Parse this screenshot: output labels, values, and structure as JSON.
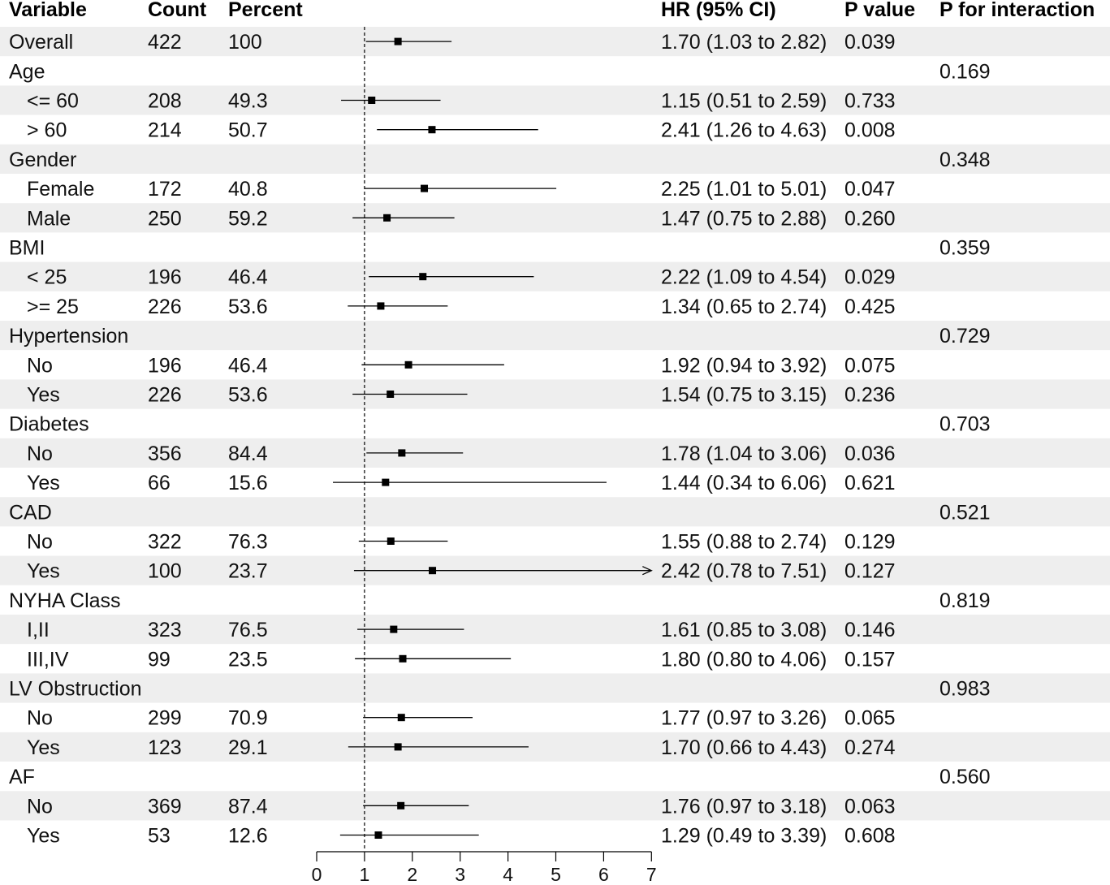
{
  "chart_data": {
    "type": "forest",
    "headers": {
      "variable": "Variable",
      "count": "Count",
      "percent": "Percent",
      "hr": "HR (95% CI)",
      "p": "P value",
      "p_interaction": "P for interaction"
    },
    "reference_line": 1,
    "xlim": [
      0,
      7
    ],
    "xticks": [
      "0",
      "1",
      "2",
      "3",
      "4",
      "5",
      "6",
      "7"
    ],
    "rows": [
      {
        "label": "Overall",
        "indent": false,
        "count": "422",
        "percent": "100",
        "hr": 1.7,
        "lo": 1.03,
        "hi": 2.82,
        "hr_text": "1.70 (1.03 to 2.82)",
        "p": "0.039",
        "p_int": ""
      },
      {
        "label": "Age",
        "indent": false,
        "count": "",
        "percent": "",
        "hr": null,
        "lo": null,
        "hi": null,
        "hr_text": "",
        "p": "",
        "p_int": "0.169"
      },
      {
        "label": "<= 60",
        "indent": true,
        "count": "208",
        "percent": "49.3",
        "hr": 1.15,
        "lo": 0.51,
        "hi": 2.59,
        "hr_text": "1.15 (0.51 to 2.59)",
        "p": "0.733",
        "p_int": ""
      },
      {
        "label": "> 60",
        "indent": true,
        "count": "214",
        "percent": "50.7",
        "hr": 2.41,
        "lo": 1.26,
        "hi": 4.63,
        "hr_text": "2.41 (1.26 to 4.63)",
        "p": "0.008",
        "p_int": ""
      },
      {
        "label": "Gender",
        "indent": false,
        "count": "",
        "percent": "",
        "hr": null,
        "lo": null,
        "hi": null,
        "hr_text": "",
        "p": "",
        "p_int": "0.348"
      },
      {
        "label": "Female",
        "indent": true,
        "count": "172",
        "percent": "40.8",
        "hr": 2.25,
        "lo": 1.01,
        "hi": 5.01,
        "hr_text": "2.25 (1.01 to 5.01)",
        "p": "0.047",
        "p_int": ""
      },
      {
        "label": "Male",
        "indent": true,
        "count": "250",
        "percent": "59.2",
        "hr": 1.47,
        "lo": 0.75,
        "hi": 2.88,
        "hr_text": "1.47 (0.75 to 2.88)",
        "p": "0.260",
        "p_int": ""
      },
      {
        "label": "BMI",
        "indent": false,
        "count": "",
        "percent": "",
        "hr": null,
        "lo": null,
        "hi": null,
        "hr_text": "",
        "p": "",
        "p_int": "0.359"
      },
      {
        "label": "< 25",
        "indent": true,
        "count": "196",
        "percent": "46.4",
        "hr": 2.22,
        "lo": 1.09,
        "hi": 4.54,
        "hr_text": "2.22 (1.09 to 4.54)",
        "p": "0.029",
        "p_int": ""
      },
      {
        "label": ">= 25",
        "indent": true,
        "count": "226",
        "percent": "53.6",
        "hr": 1.34,
        "lo": 0.65,
        "hi": 2.74,
        "hr_text": "1.34 (0.65 to 2.74)",
        "p": "0.425",
        "p_int": ""
      },
      {
        "label": "Hypertension",
        "indent": false,
        "count": "",
        "percent": "",
        "hr": null,
        "lo": null,
        "hi": null,
        "hr_text": "",
        "p": "",
        "p_int": "0.729"
      },
      {
        "label": "No",
        "indent": true,
        "count": "196",
        "percent": "46.4",
        "hr": 1.92,
        "lo": 0.94,
        "hi": 3.92,
        "hr_text": "1.92 (0.94 to 3.92)",
        "p": "0.075",
        "p_int": ""
      },
      {
        "label": "Yes",
        "indent": true,
        "count": "226",
        "percent": "53.6",
        "hr": 1.54,
        "lo": 0.75,
        "hi": 3.15,
        "hr_text": "1.54 (0.75 to 3.15)",
        "p": "0.236",
        "p_int": ""
      },
      {
        "label": "Diabetes",
        "indent": false,
        "count": "",
        "percent": "",
        "hr": null,
        "lo": null,
        "hi": null,
        "hr_text": "",
        "p": "",
        "p_int": "0.703"
      },
      {
        "label": "No",
        "indent": true,
        "count": "356",
        "percent": "84.4",
        "hr": 1.78,
        "lo": 1.04,
        "hi": 3.06,
        "hr_text": "1.78 (1.04 to 3.06)",
        "p": "0.036",
        "p_int": ""
      },
      {
        "label": "Yes",
        "indent": true,
        "count": "66",
        "percent": "15.6",
        "hr": 1.44,
        "lo": 0.34,
        "hi": 6.06,
        "hr_text": "1.44 (0.34 to 6.06)",
        "p": "0.621",
        "p_int": ""
      },
      {
        "label": "CAD",
        "indent": false,
        "count": "",
        "percent": "",
        "hr": null,
        "lo": null,
        "hi": null,
        "hr_text": "",
        "p": "",
        "p_int": "0.521"
      },
      {
        "label": "No",
        "indent": true,
        "count": "322",
        "percent": "76.3",
        "hr": 1.55,
        "lo": 0.88,
        "hi": 2.74,
        "hr_text": "1.55 (0.88 to 2.74)",
        "p": "0.129",
        "p_int": ""
      },
      {
        "label": "Yes",
        "indent": true,
        "count": "100",
        "percent": "23.7",
        "hr": 2.42,
        "lo": 0.78,
        "hi": 7.51,
        "hr_text": "2.42 (0.78 to 7.51)",
        "p": "0.127",
        "p_int": ""
      },
      {
        "label": "NYHA Class",
        "indent": false,
        "count": "",
        "percent": "",
        "hr": null,
        "lo": null,
        "hi": null,
        "hr_text": "",
        "p": "",
        "p_int": "0.819"
      },
      {
        "label": "I,II",
        "indent": true,
        "count": "323",
        "percent": "76.5",
        "hr": 1.61,
        "lo": 0.85,
        "hi": 3.08,
        "hr_text": "1.61 (0.85 to 3.08)",
        "p": "0.146",
        "p_int": ""
      },
      {
        "label": "III,IV",
        "indent": true,
        "count": "99",
        "percent": "23.5",
        "hr": 1.8,
        "lo": 0.8,
        "hi": 4.06,
        "hr_text": "1.80 (0.80 to 4.06)",
        "p": "0.157",
        "p_int": ""
      },
      {
        "label": "LV Obstruction",
        "indent": false,
        "count": "",
        "percent": "",
        "hr": null,
        "lo": null,
        "hi": null,
        "hr_text": "",
        "p": "",
        "p_int": "0.983"
      },
      {
        "label": "No",
        "indent": true,
        "count": "299",
        "percent": "70.9",
        "hr": 1.77,
        "lo": 0.97,
        "hi": 3.26,
        "hr_text": "1.77 (0.97 to 3.26)",
        "p": "0.065",
        "p_int": ""
      },
      {
        "label": "Yes",
        "indent": true,
        "count": "123",
        "percent": "29.1",
        "hr": 1.7,
        "lo": 0.66,
        "hi": 4.43,
        "hr_text": "1.70 (0.66 to 4.43)",
        "p": "0.274",
        "p_int": ""
      },
      {
        "label": "AF",
        "indent": false,
        "count": "",
        "percent": "",
        "hr": null,
        "lo": null,
        "hi": null,
        "hr_text": "",
        "p": "",
        "p_int": "0.560"
      },
      {
        "label": "No",
        "indent": true,
        "count": "369",
        "percent": "87.4",
        "hr": 1.76,
        "lo": 0.97,
        "hi": 3.18,
        "hr_text": "1.76 (0.97 to 3.18)",
        "p": "0.063",
        "p_int": ""
      },
      {
        "label": "Yes",
        "indent": true,
        "count": "53",
        "percent": "12.6",
        "hr": 1.29,
        "lo": 0.49,
        "hi": 3.39,
        "hr_text": "1.29 (0.49 to 3.39)",
        "p": "0.608",
        "p_int": ""
      }
    ],
    "colors": {
      "stripe": "#eeeeee",
      "marker": "#000000",
      "text": "#111111"
    }
  }
}
